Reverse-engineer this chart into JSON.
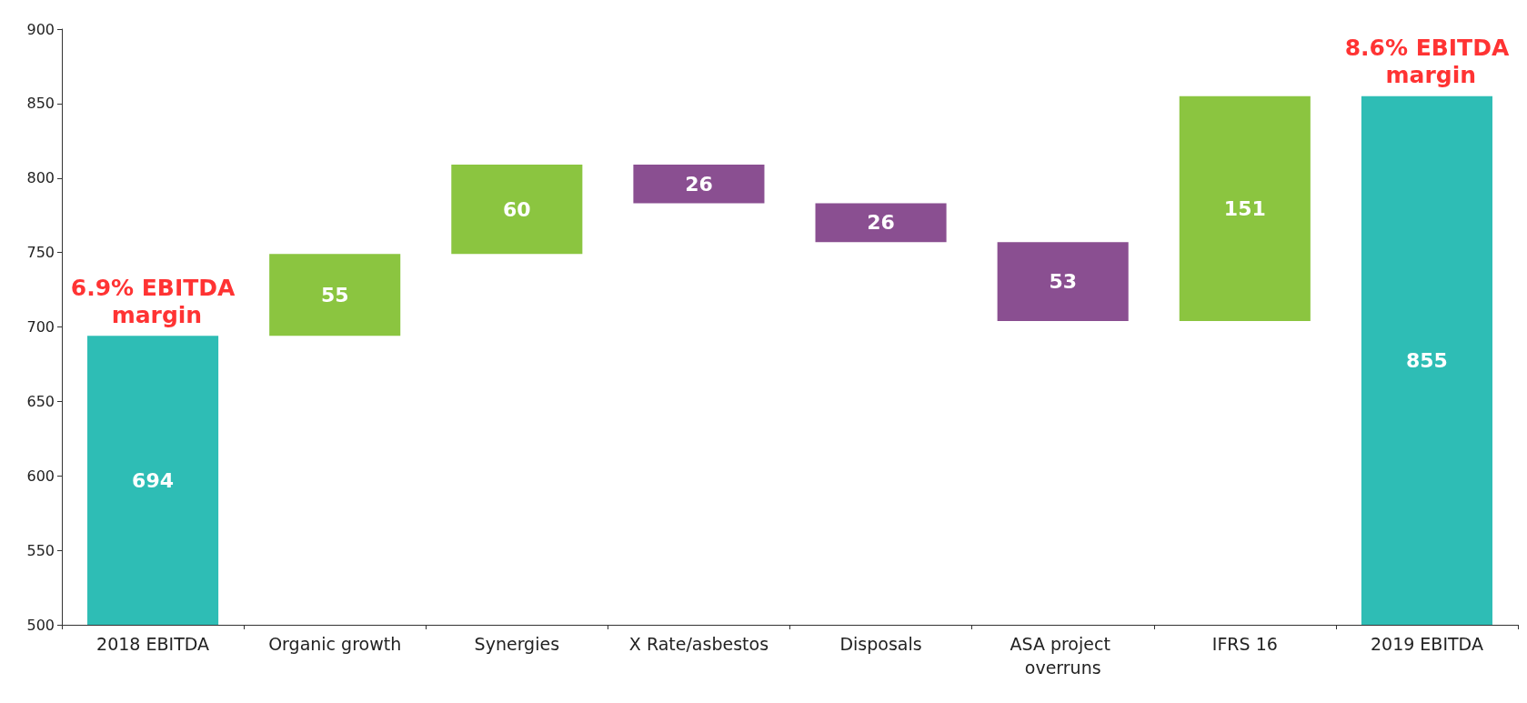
{
  "chart_data": {
    "type": "bar",
    "categories": [
      "2018 EBITDA",
      "Organic growth",
      "Synergies",
      "X Rate/asbestos",
      "Disposals",
      "ASA project overruns",
      "IFRS 16",
      "2019 EBITDA"
    ],
    "values": [
      694,
      55,
      60,
      -26,
      -26,
      -53,
      151,
      855
    ],
    "base": [
      null,
      694,
      749,
      809,
      783,
      757,
      704,
      null
    ],
    "value_labels": [
      "694",
      "55",
      "60",
      "26",
      "26",
      "53",
      "151",
      "855"
    ],
    "colors": [
      "#2ebdb5",
      "#8bc540",
      "#8bc540",
      "#8a4f91",
      "#8a4f91",
      "#8a4f91",
      "#8bc540",
      "#2ebdb5"
    ],
    "ylim": [
      500,
      900
    ],
    "yticks": [
      500,
      550,
      600,
      650,
      700,
      750,
      800,
      850,
      900
    ],
    "grid": false,
    "annotations": [
      {
        "text": "6.9% EBITDA margin",
        "x": "2018 EBITDA",
        "y": 694
      },
      {
        "text": "8.6% EBITDA margin",
        "x": "2019 EBITDA",
        "y": 855
      }
    ]
  }
}
